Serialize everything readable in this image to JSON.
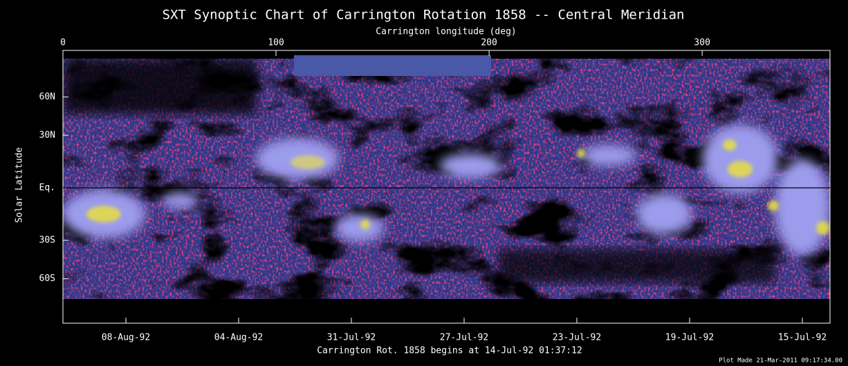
{
  "chart_data": {
    "type": "image",
    "title": "SXT Synoptic Chart of Carrington Rotation 1858 -- Central Meridian",
    "x_label": "Carrington longitude (deg)",
    "y_label": "Solar Latitude",
    "x2_label": "Carrington Rot. 1858 begins at 14-Jul-92 01:37:12",
    "footnote": "Plot Made 21-Mar-2011 09:17:34.00",
    "xlim": [
      0,
      360
    ],
    "xticks": [
      0,
      100,
      200,
      300
    ],
    "ylim": [
      -90,
      90
    ],
    "yscale": "sine",
    "yticks": [
      {
        "value": 60,
        "label": "60N"
      },
      {
        "value": 30,
        "label": "30N"
      },
      {
        "value": 0,
        "label": "Eq."
      },
      {
        "value": -30,
        "label": "30S"
      },
      {
        "value": -60,
        "label": "60S"
      }
    ],
    "x2ticks": [
      "08-Aug-92",
      "04-Aug-92",
      "31-Jul-92",
      "27-Jul-92",
      "23-Jul-92",
      "19-Jul-92",
      "15-Jul-92"
    ]
  }
}
